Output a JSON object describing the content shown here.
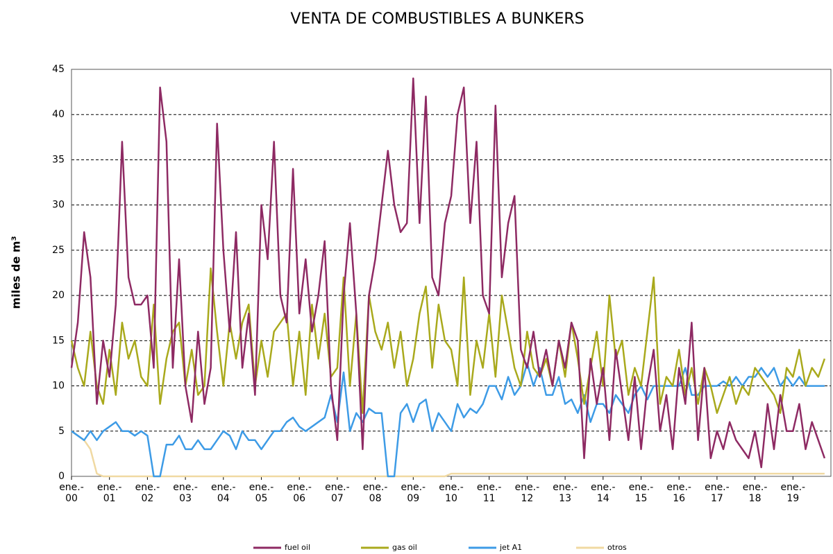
{
  "chart_data": {
    "type": "line",
    "title": "VENTA DE COMBUSTIBLES A BUNKERS",
    "y_label": "miles de m³",
    "categories": [
      "ene.-\n00",
      null,
      null,
      null,
      null,
      null,
      "ene.-\n01",
      null,
      null,
      null,
      null,
      null,
      "ene.-\n02",
      null,
      null,
      null,
      null,
      null,
      "ene.-\n03",
      null,
      null,
      null,
      null,
      null,
      "ene.-\n04",
      null,
      null,
      null,
      null,
      null,
      "ene.-\n05",
      null,
      null,
      null,
      null,
      null,
      "ene.-\n06",
      null,
      null,
      null,
      null,
      null,
      "ene.-\n07",
      null,
      null,
      null,
      null,
      null,
      "ene.-\n08",
      null,
      null,
      null,
      null,
      null,
      "ene.-\n09",
      null,
      null,
      null,
      null,
      null,
      "ene.-\n10",
      null,
      null,
      null,
      null,
      null,
      "ene.-\n11",
      null,
      null,
      null,
      null,
      null,
      "ene.-\n12",
      null,
      null,
      null,
      null,
      null,
      "ene.-\n13",
      null,
      null,
      null,
      null,
      null,
      "ene.-\n14",
      null,
      null,
      null,
      null,
      null,
      "ene.-\n15",
      null,
      null,
      null,
      null,
      null,
      "ene.-\n16",
      null,
      null,
      null,
      null,
      null,
      "ene.-\n17",
      null,
      null,
      null,
      null,
      null,
      "ene.-\n18",
      null,
      null,
      null,
      null,
      null,
      "ene.-\n19",
      null,
      null,
      null,
      null,
      null
    ],
    "series": [
      {
        "name": "fuel oil",
        "color": "#8e2a63",
        "values": [
          12,
          17,
          27,
          22,
          8,
          15,
          11,
          19,
          37,
          22,
          19,
          19,
          20,
          12,
          43,
          37,
          12,
          24,
          10,
          6,
          16,
          8,
          12,
          39,
          25,
          16,
          27,
          12,
          18,
          9,
          30,
          24,
          37,
          20,
          17,
          34,
          18,
          24,
          16,
          20,
          26,
          10,
          4,
          20,
          28,
          18,
          3,
          20,
          24,
          30,
          36,
          30,
          27,
          28,
          44,
          28,
          42,
          22,
          20,
          28,
          31,
          40,
          43,
          28,
          37,
          20,
          18,
          41,
          22,
          28,
          31,
          14,
          12,
          16,
          11,
          14,
          10,
          15,
          12,
          17,
          15,
          2,
          13,
          8,
          12,
          4,
          14,
          9,
          4,
          11,
          3,
          10,
          14,
          5,
          9,
          3,
          12,
          8,
          17,
          4,
          12,
          2,
          5,
          3,
          6,
          4,
          3,
          2,
          5,
          1,
          8,
          3,
          9,
          5,
          5,
          8,
          3,
          6,
          4,
          2
        ]
      },
      {
        "name": "gas oil",
        "color": "#a9a91c",
        "values": [
          15,
          12,
          10,
          16,
          10,
          8,
          14,
          9,
          17,
          13,
          15,
          11,
          10,
          19,
          8,
          13,
          16,
          17,
          10,
          14,
          9,
          10,
          23,
          16,
          10,
          17,
          13,
          17,
          19,
          10,
          15,
          11,
          16,
          17,
          18,
          10,
          16,
          9,
          19,
          13,
          18,
          11,
          12,
          22,
          10,
          18,
          7,
          20,
          16,
          14,
          17,
          12,
          16,
          10,
          13,
          18,
          21,
          12,
          19,
          15,
          14,
          10,
          22,
          9,
          15,
          12,
          18,
          11,
          20,
          16,
          12,
          10,
          16,
          12,
          11,
          13,
          10,
          15,
          11,
          17,
          13,
          8,
          12,
          16,
          10,
          20,
          13,
          15,
          9,
          12,
          10,
          16,
          22,
          8,
          11,
          10,
          14,
          9,
          12,
          8,
          12,
          10,
          7,
          9,
          11,
          8,
          10,
          9,
          12,
          11,
          10,
          9,
          7,
          12,
          11,
          14,
          10,
          12,
          11,
          13
        ]
      },
      {
        "name": "jet A1",
        "color": "#3d9be6",
        "values": [
          5,
          4.5,
          4,
          5,
          4,
          5,
          5.5,
          6,
          5,
          5,
          4.5,
          5,
          4.5,
          0,
          0,
          3.5,
          3.5,
          4.5,
          3,
          3,
          4,
          3,
          3,
          4,
          5,
          4.5,
          3,
          5,
          4,
          4,
          3,
          4,
          5,
          5,
          6,
          6.5,
          5.5,
          5,
          5.5,
          6,
          6.5,
          9,
          6,
          11.5,
          5,
          7,
          6,
          7.5,
          7,
          7,
          0,
          0,
          7,
          8,
          6,
          8,
          8.5,
          5,
          7,
          6,
          5,
          8,
          6.5,
          7.5,
          7,
          8,
          10,
          10,
          8.5,
          11,
          9,
          10,
          12.5,
          10,
          12,
          9,
          9,
          11,
          8,
          8.5,
          7,
          9,
          6,
          8,
          8,
          7,
          9,
          8,
          7,
          9,
          10,
          8.5,
          10,
          10,
          10,
          10,
          10,
          12,
          9,
          9,
          10,
          10,
          10,
          10.5,
          10,
          11,
          10,
          11,
          11,
          12,
          11,
          12,
          10,
          11,
          10,
          11,
          10,
          10,
          10,
          10
        ]
      },
      {
        "name": "otros",
        "color": "#f0d9a2",
        "values": [
          5,
          4.5,
          4,
          3,
          0.3,
          0,
          0,
          0,
          0,
          0,
          0,
          0,
          0,
          0,
          0,
          0,
          0,
          0,
          0,
          0,
          0,
          0,
          0,
          0,
          0,
          0,
          0,
          0,
          0,
          0,
          0,
          0,
          0,
          0,
          0,
          0,
          0,
          0,
          0,
          0,
          0,
          0,
          0,
          0,
          0,
          0,
          0,
          0,
          0,
          0,
          0,
          0,
          0,
          0,
          0,
          0,
          0,
          0,
          0,
          0,
          0.3,
          0.3,
          0.3,
          0.3,
          0.3,
          0.3,
          0.3,
          0.3,
          0.3,
          0.3,
          0.3,
          0.3,
          0.3,
          0.3,
          0.3,
          0.3,
          0.3,
          0.3,
          0.3,
          0.3,
          0.3,
          0.3,
          0.3,
          0.3,
          0.3,
          0.3,
          0.3,
          0.3,
          0.3,
          0.3,
          0.3,
          0.3,
          0.3,
          0.3,
          0.3,
          0.3,
          0.3,
          0.3,
          0.3,
          0.3,
          0.3,
          0.3,
          0.3,
          0.3,
          0.3,
          0.3,
          0.3,
          0.3,
          0.3,
          0.3,
          0.3,
          0.3,
          0.3,
          0.3,
          0.3,
          0.3,
          0.3,
          0.3,
          0.3,
          0.3
        ]
      }
    ],
    "ylim": [
      0,
      45
    ],
    "yticks": [
      0,
      5,
      10,
      15,
      20,
      25,
      30,
      35,
      40,
      45
    ],
    "grid": true
  }
}
